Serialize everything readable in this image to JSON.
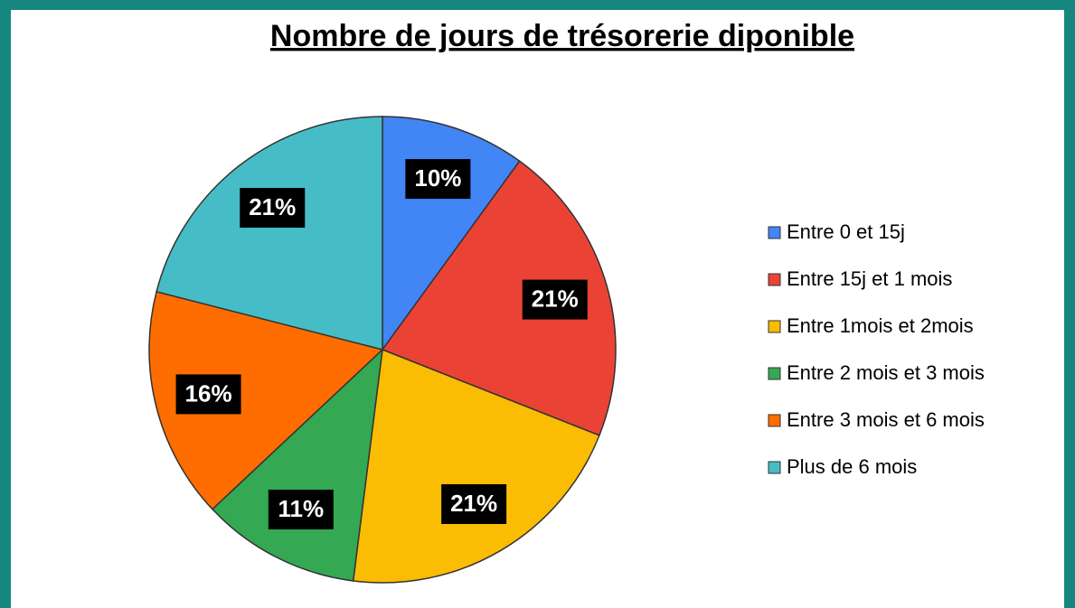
{
  "chart_data": {
    "type": "pie",
    "title": "Nombre de jours de trésorerie diponible",
    "categories": [
      "Entre 0 et 15j",
      "Entre 15j et 1 mois",
      "Entre 1mois et 2mois",
      "Entre 2 mois et 3 mois",
      "Entre 3 mois et 6 mois",
      "Plus de 6 mois"
    ],
    "values": [
      10,
      21,
      21,
      11,
      16,
      21
    ],
    "value_labels": [
      "10%",
      "21%",
      "21%",
      "11%",
      "16%",
      "21%"
    ],
    "colors": [
      "#4285f4",
      "#ea4335",
      "#fbbc04",
      "#34a853",
      "#ff6d01",
      "#46bdc6"
    ],
    "legend": "right"
  }
}
